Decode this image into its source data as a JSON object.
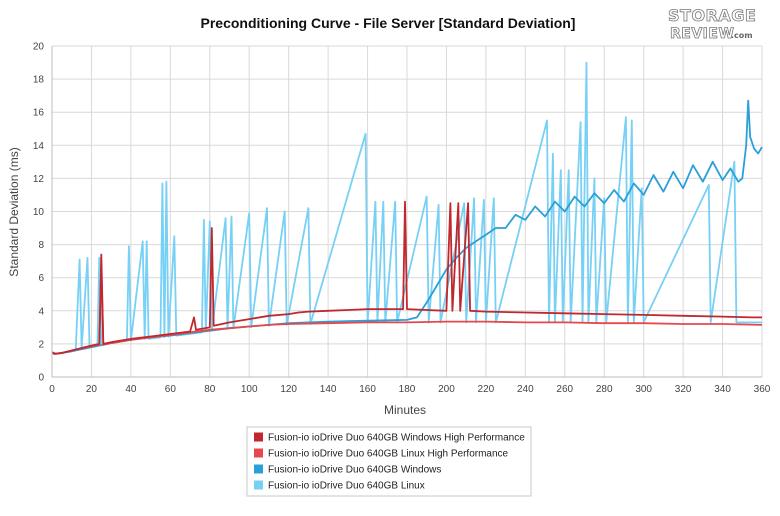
{
  "logo": {
    "line1": "STORAGE",
    "line2": "REVIEW",
    "suffix": ".com"
  },
  "chart_data": {
    "type": "line",
    "title": "Preconditioning Curve - File Server [Standard Deviation]",
    "xlabel": "Minutes",
    "ylabel": "Standard Deviation (ms)",
    "xlim": [
      0,
      360
    ],
    "ylim": [
      0,
      20
    ],
    "xticks": [
      0,
      20,
      40,
      60,
      80,
      100,
      120,
      140,
      160,
      180,
      200,
      220,
      240,
      260,
      280,
      300,
      320,
      340,
      360
    ],
    "yticks": [
      0,
      2,
      4,
      6,
      8,
      10,
      12,
      14,
      16,
      18,
      20
    ],
    "grid": true,
    "legend_position": "bottom-center",
    "series": [
      {
        "name": "Fusion-io ioDrive Duo 640GB Windows High Performance",
        "color": "#c0282d",
        "points": [
          [
            0,
            1.5
          ],
          [
            1,
            1.4
          ],
          [
            5,
            1.45
          ],
          [
            10,
            1.6
          ],
          [
            15,
            1.75
          ],
          [
            20,
            1.9
          ],
          [
            24,
            2.0
          ],
          [
            25,
            7.4
          ],
          [
            26,
            2.0
          ],
          [
            30,
            2.1
          ],
          [
            40,
            2.3
          ],
          [
            50,
            2.45
          ],
          [
            60,
            2.6
          ],
          [
            70,
            2.75
          ],
          [
            72,
            3.6
          ],
          [
            73,
            2.85
          ],
          [
            80,
            3.0
          ],
          [
            81,
            9.0
          ],
          [
            82,
            3.1
          ],
          [
            90,
            3.3
          ],
          [
            100,
            3.5
          ],
          [
            110,
            3.7
          ],
          [
            120,
            3.8
          ],
          [
            125,
            3.9
          ],
          [
            130,
            3.95
          ],
          [
            140,
            4.0
          ],
          [
            150,
            4.05
          ],
          [
            160,
            4.1
          ],
          [
            170,
            4.1
          ],
          [
            178,
            4.1
          ],
          [
            179,
            10.6
          ],
          [
            180,
            4.1
          ],
          [
            190,
            4.05
          ],
          [
            200,
            4.0
          ],
          [
            202,
            10.5
          ],
          [
            203,
            4.0
          ],
          [
            206,
            10.5
          ],
          [
            207,
            4.0
          ],
          [
            211,
            10.5
          ],
          [
            212,
            4.0
          ],
          [
            220,
            3.95
          ],
          [
            240,
            3.9
          ],
          [
            260,
            3.85
          ],
          [
            280,
            3.8
          ],
          [
            300,
            3.75
          ],
          [
            320,
            3.7
          ],
          [
            340,
            3.65
          ],
          [
            355,
            3.6
          ],
          [
            360,
            3.6
          ]
        ]
      },
      {
        "name": "Fusion-io ioDrive Duo 640GB Linux High Performance",
        "color": "#e8474c",
        "points": [
          [
            0,
            1.5
          ],
          [
            1,
            1.4
          ],
          [
            5,
            1.45
          ],
          [
            10,
            1.6
          ],
          [
            20,
            1.85
          ],
          [
            24,
            1.95
          ],
          [
            25,
            6.8
          ],
          [
            26,
            1.95
          ],
          [
            30,
            2.05
          ],
          [
            40,
            2.25
          ],
          [
            50,
            2.4
          ],
          [
            60,
            2.55
          ],
          [
            70,
            2.7
          ],
          [
            80,
            2.85
          ],
          [
            90,
            2.95
          ],
          [
            100,
            3.05
          ],
          [
            110,
            3.15
          ],
          [
            120,
            3.2
          ],
          [
            140,
            3.25
          ],
          [
            160,
            3.3
          ],
          [
            180,
            3.3
          ],
          [
            200,
            3.35
          ],
          [
            220,
            3.35
          ],
          [
            240,
            3.3
          ],
          [
            260,
            3.3
          ],
          [
            280,
            3.25
          ],
          [
            300,
            3.25
          ],
          [
            320,
            3.2
          ],
          [
            340,
            3.2
          ],
          [
            360,
            3.15
          ]
        ]
      },
      {
        "name": "Fusion-io ioDrive Duo 640GB Windows",
        "color": "#2a9fd8",
        "points": [
          [
            0,
            1.5
          ],
          [
            2,
            1.4
          ],
          [
            10,
            1.55
          ],
          [
            20,
            1.8
          ],
          [
            30,
            2.05
          ],
          [
            40,
            2.25
          ],
          [
            50,
            2.4
          ],
          [
            60,
            2.5
          ],
          [
            70,
            2.65
          ],
          [
            80,
            2.8
          ],
          [
            90,
            2.95
          ],
          [
            100,
            3.05
          ],
          [
            110,
            3.15
          ],
          [
            120,
            3.25
          ],
          [
            140,
            3.35
          ],
          [
            160,
            3.4
          ],
          [
            180,
            3.45
          ],
          [
            185,
            3.6
          ],
          [
            190,
            4.5
          ],
          [
            195,
            5.5
          ],
          [
            200,
            6.5
          ],
          [
            205,
            7.2
          ],
          [
            210,
            7.8
          ],
          [
            215,
            8.2
          ],
          [
            220,
            8.6
          ],
          [
            225,
            9.0
          ],
          [
            230,
            9.0
          ],
          [
            235,
            9.8
          ],
          [
            240,
            9.5
          ],
          [
            245,
            10.3
          ],
          [
            250,
            9.7
          ],
          [
            255,
            10.6
          ],
          [
            260,
            10.0
          ],
          [
            265,
            10.9
          ],
          [
            270,
            10.3
          ],
          [
            275,
            11.1
          ],
          [
            280,
            10.5
          ],
          [
            285,
            11.3
          ],
          [
            290,
            10.6
          ],
          [
            295,
            11.7
          ],
          [
            300,
            11.0
          ],
          [
            305,
            12.2
          ],
          [
            310,
            11.2
          ],
          [
            315,
            12.4
          ],
          [
            320,
            11.4
          ],
          [
            325,
            12.8
          ],
          [
            330,
            11.8
          ],
          [
            335,
            13.0
          ],
          [
            340,
            11.9
          ],
          [
            344,
            12.6
          ],
          [
            348,
            11.8
          ],
          [
            350,
            12.0
          ],
          [
            352,
            14.0
          ],
          [
            353,
            16.7
          ],
          [
            354,
            14.5
          ],
          [
            356,
            13.8
          ],
          [
            358,
            13.5
          ],
          [
            360,
            13.9
          ]
        ]
      },
      {
        "name": "Fusion-io ioDrive Duo 640GB Linux",
        "color": "#77d0f5",
        "points": [
          [
            0,
            1.5
          ],
          [
            2,
            1.4
          ],
          [
            12,
            1.6
          ],
          [
            14,
            7.1
          ],
          [
            15,
            1.7
          ],
          [
            18,
            7.2
          ],
          [
            19,
            1.8
          ],
          [
            23,
            1.9
          ],
          [
            24,
            7.2
          ],
          [
            25,
            1.95
          ],
          [
            38,
            2.2
          ],
          [
            39,
            7.9
          ],
          [
            40,
            2.2
          ],
          [
            46,
            8.2
          ],
          [
            47,
            2.3
          ],
          [
            48,
            8.2
          ],
          [
            49,
            2.3
          ],
          [
            55,
            2.4
          ],
          [
            56,
            11.7
          ],
          [
            57,
            2.4
          ],
          [
            58,
            11.8
          ],
          [
            59,
            2.45
          ],
          [
            62,
            8.5
          ],
          [
            63,
            2.5
          ],
          [
            76,
            2.7
          ],
          [
            77,
            9.5
          ],
          [
            78,
            2.75
          ],
          [
            80,
            9.4
          ],
          [
            81,
            2.8
          ],
          [
            88,
            9.6
          ],
          [
            89,
            2.9
          ],
          [
            91,
            9.7
          ],
          [
            92,
            2.95
          ],
          [
            100,
            9.9
          ],
          [
            101,
            3.0
          ],
          [
            109,
            10.2
          ],
          [
            110,
            3.1
          ],
          [
            118,
            10.0
          ],
          [
            119,
            3.15
          ],
          [
            130,
            10.2
          ],
          [
            131,
            3.2
          ],
          [
            159,
            14.7
          ],
          [
            160,
            3.3
          ],
          [
            164,
            10.6
          ],
          [
            165,
            3.3
          ],
          [
            168,
            10.6
          ],
          [
            169,
            3.3
          ],
          [
            174,
            10.6
          ],
          [
            175,
            3.3
          ],
          [
            190,
            10.9
          ],
          [
            191,
            3.3
          ],
          [
            196,
            10.4
          ],
          [
            197,
            3.3
          ],
          [
            209,
            10.5
          ],
          [
            210,
            3.3
          ],
          [
            214,
            10.8
          ],
          [
            215,
            3.3
          ],
          [
            219,
            10.7
          ],
          [
            220,
            3.3
          ],
          [
            224,
            10.8
          ],
          [
            225,
            3.3
          ],
          [
            251,
            15.5
          ],
          [
            252,
            3.3
          ],
          [
            254,
            13.5
          ],
          [
            255,
            3.3
          ],
          [
            258,
            12.5
          ],
          [
            259,
            3.3
          ],
          [
            262,
            12.5
          ],
          [
            263,
            3.3
          ],
          [
            268,
            15.4
          ],
          [
            269,
            3.3
          ],
          [
            271,
            19.0
          ],
          [
            272,
            3.3
          ],
          [
            275,
            12.0
          ],
          [
            276,
            3.3
          ],
          [
            280,
            10.8
          ],
          [
            281,
            3.3
          ],
          [
            291,
            15.7
          ],
          [
            292,
            3.3
          ],
          [
            294,
            15.5
          ],
          [
            295,
            3.3
          ],
          [
            299,
            11.4
          ],
          [
            300,
            3.3
          ],
          [
            333,
            11.6
          ],
          [
            334,
            3.3
          ],
          [
            346,
            13.0
          ],
          [
            347,
            3.3
          ],
          [
            360,
            3.3
          ]
        ]
      }
    ]
  }
}
